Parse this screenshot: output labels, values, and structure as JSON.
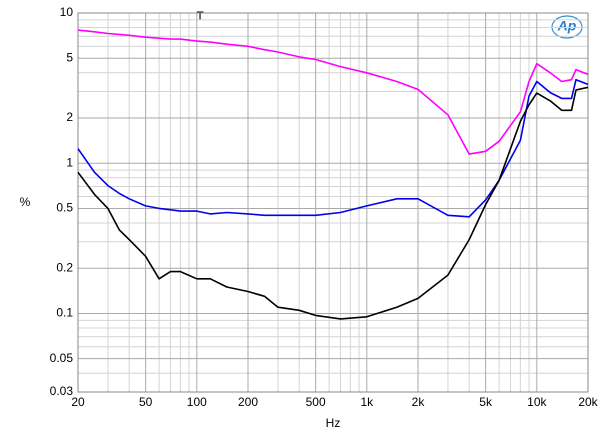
{
  "chart_data": {
    "type": "line",
    "xlabel": "Hz",
    "ylabel": "%",
    "annotation": "T",
    "logo": "Ap",
    "xscale": "log",
    "yscale": "log",
    "grid": true,
    "x": [
      20,
      25,
      30,
      35,
      40,
      50,
      60,
      70,
      80,
      100,
      120,
      150,
      200,
      250,
      300,
      400,
      500,
      700,
      1000,
      1500,
      2000,
      3000,
      4000,
      5000,
      6000,
      8000,
      9000,
      10000,
      12000,
      14000,
      16000,
      17000,
      20000
    ],
    "series": [
      {
        "color": "#ff00ff",
        "values": [
          7.7,
          7.5,
          7.3,
          7.2,
          7.1,
          6.9,
          6.8,
          6.7,
          6.7,
          6.5,
          6.4,
          6.2,
          6.0,
          5.7,
          5.5,
          5.1,
          4.9,
          4.4,
          4.0,
          3.5,
          3.1,
          2.1,
          1.15,
          1.2,
          1.4,
          2.2,
          3.5,
          4.6,
          4.0,
          3.5,
          3.6,
          4.2,
          3.9
        ]
      },
      {
        "color": "#0000ee",
        "values": [
          1.25,
          0.87,
          0.71,
          0.63,
          0.58,
          0.52,
          0.5,
          0.49,
          0.48,
          0.48,
          0.46,
          0.47,
          0.46,
          0.45,
          0.45,
          0.45,
          0.45,
          0.47,
          0.52,
          0.58,
          0.58,
          0.45,
          0.44,
          0.57,
          0.77,
          1.42,
          2.8,
          3.5,
          2.95,
          2.7,
          2.7,
          3.6,
          3.35
        ]
      },
      {
        "color": "#000000",
        "values": [
          0.87,
          0.62,
          0.5,
          0.36,
          0.31,
          0.24,
          0.17,
          0.19,
          0.19,
          0.17,
          0.17,
          0.15,
          0.14,
          0.13,
          0.11,
          0.105,
          0.097,
          0.092,
          0.095,
          0.11,
          0.126,
          0.18,
          0.31,
          0.53,
          0.77,
          1.9,
          2.45,
          2.93,
          2.6,
          2.25,
          2.25,
          3.07,
          3.2
        ]
      }
    ],
    "xlim": [
      20,
      20000
    ],
    "xticks": [
      20,
      50,
      100,
      200,
      500,
      {
        "value": 1000,
        "label": "1k"
      },
      {
        "value": 2000,
        "label": "2k"
      },
      {
        "value": 5000,
        "label": "5k"
      },
      {
        "value": 10000,
        "label": "10k"
      },
      {
        "value": 20000,
        "label": "20k"
      }
    ],
    "xminor": [
      30,
      40,
      60,
      70,
      80,
      90,
      300,
      400,
      600,
      700,
      800,
      900,
      3000,
      4000,
      6000,
      7000,
      8000,
      9000
    ],
    "ylim": [
      0.03,
      10
    ],
    "yticks": [
      10,
      5,
      2,
      1,
      0.5,
      0.2,
      0.1,
      0.05,
      0.03
    ],
    "yminor": [
      0.04,
      0.06,
      0.07,
      0.08,
      0.09,
      0.3,
      0.4,
      0.6,
      0.7,
      0.8,
      0.9,
      3,
      4,
      6,
      7,
      8,
      9
    ]
  }
}
